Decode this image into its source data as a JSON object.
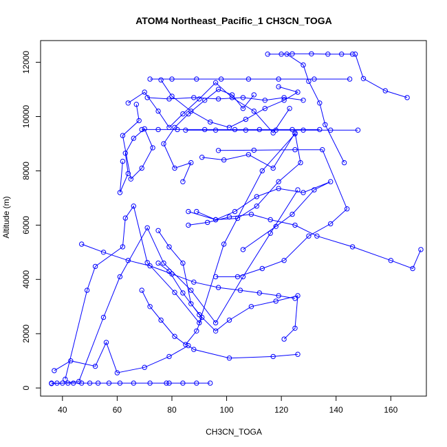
{
  "chart_data": {
    "type": "scatter",
    "title": "ATOM4 Northeast_Pacific_1 CH3CN_TOGA",
    "xlabel": "CH3CN_TOGA",
    "ylabel": "Altitude (m)",
    "xlim": [
      32,
      173
    ],
    "ylim": [
      -300,
      12800
    ],
    "x_ticks": [
      40,
      60,
      80,
      100,
      120,
      140,
      160
    ],
    "y_ticks": [
      0,
      2000,
      4000,
      6000,
      8000,
      10000,
      12000
    ],
    "grid": false,
    "legend": "none",
    "color": "#0000ff",
    "series": [
      {
        "x": [
          36,
          38,
          42,
          44,
          47,
          50,
          53,
          57,
          61,
          66,
          72,
          78,
          79,
          84,
          89,
          94
        ],
        "y": [
          180,
          180,
          180,
          180,
          180,
          180,
          180,
          180,
          180,
          180,
          180,
          180,
          180,
          180,
          180,
          180
        ]
      },
      {
        "x": [
          37,
          43,
          52,
          56,
          60,
          70,
          79,
          86,
          88,
          101,
          117,
          126
        ],
        "y": [
          640,
          1000,
          800,
          1680,
          560,
          760,
          1160,
          1560,
          1420,
          1100,
          1160,
          1240
        ]
      },
      {
        "x": [
          36,
          40,
          46,
          55,
          61,
          71,
          77,
          87,
          96,
          106,
          116,
          126
        ],
        "y": [
          160,
          180,
          240,
          2600,
          4100,
          5900,
          4600,
          3600,
          2400,
          4100,
          5700,
          7300
        ]
      },
      {
        "x": [
          41,
          49,
          52,
          62,
          63,
          66,
          71,
          81,
          90,
          99,
          113,
          125
        ],
        "y": [
          320,
          3600,
          4480,
          5200,
          6260,
          6700,
          4620,
          3520,
          2400,
          5300,
          8000,
          9360
        ]
      },
      {
        "x": [
          62,
          61,
          64,
          63,
          66,
          70,
          73,
          69,
          65,
          62,
          68,
          67
        ],
        "y": [
          8350,
          7200,
          7900,
          8650,
          9200,
          9550,
          8850,
          8100,
          7700,
          9300,
          9850,
          10450
        ]
      },
      {
        "x": [
          69,
          75,
          82,
          92,
          103,
          112,
          124,
          134
        ],
        "y": [
          9520,
          9520,
          9520,
          9520,
          9520,
          9520,
          9520,
          9520
        ]
      },
      {
        "x": [
          85,
          96,
          107,
          118,
          128,
          138,
          148
        ],
        "y": [
          9500,
          9500,
          9500,
          9500,
          9500,
          9500,
          9500
        ]
      },
      {
        "x": [
          71,
          79,
          88,
          97,
          106,
          114,
          121,
          128
        ],
        "y": [
          10700,
          10650,
          10700,
          10650,
          10700,
          10600,
          10700,
          10600
        ]
      },
      {
        "x": [
          72,
          80,
          89,
          98,
          108,
          119,
          132,
          145
        ],
        "y": [
          11380,
          11380,
          11380,
          11380,
          11380,
          11380,
          11380,
          11380
        ]
      },
      {
        "x": [
          115,
          120,
          124,
          131,
          137,
          142,
          146
        ],
        "y": [
          12300,
          12300,
          12310,
          12310,
          12300,
          12300,
          12300
        ]
      },
      {
        "x": [
          122,
          128,
          130,
          134,
          136,
          143
        ],
        "y": [
          12300,
          11900,
          11300,
          10500,
          9700,
          8300
        ]
      },
      {
        "x": [
          147,
          150,
          158,
          166
        ],
        "y": [
          12300,
          11400,
          10950,
          10700
        ]
      },
      {
        "x": [
          97,
          110,
          125,
          135,
          144,
          138,
          130,
          121,
          113,
          104,
          96
        ],
        "y": [
          8750,
          8760,
          8780,
          8780,
          6600,
          6050,
          5600,
          4700,
          4400,
          4100,
          4100
        ]
      },
      {
        "x": [
          106,
          118,
          124,
          132,
          138,
          128,
          119,
          111,
          103,
          96,
          89
        ],
        "y": [
          5100,
          5950,
          6400,
          7300,
          7600,
          7200,
          7350,
          7050,
          6500,
          6200,
          6500
        ]
      },
      {
        "x": [
          86,
          96,
          104,
          111,
          119,
          127,
          125,
          117,
          108,
          99,
          91
        ],
        "y": [
          6500,
          6200,
          6250,
          6700,
          7600,
          8300,
          9400,
          8100,
          8600,
          8400,
          8500
        ]
      },
      {
        "x": [
          171,
          168,
          160,
          146,
          133,
          125,
          116,
          109,
          101,
          93,
          86
        ],
        "y": [
          5100,
          4400,
          4700,
          5200,
          5600,
          6000,
          6200,
          6400,
          6300,
          6100,
          6000
        ]
      },
      {
        "x": [
          69,
          72,
          76,
          81,
          85,
          89,
          91,
          87,
          84,
          79,
          75
        ],
        "y": [
          3600,
          3000,
          2500,
          1900,
          1600,
          2100,
          2600,
          3100,
          4600,
          5200,
          5800
        ]
      },
      {
        "x": [
          75,
          79,
          84,
          90,
          96,
          101,
          109,
          118,
          126,
          125,
          121
        ],
        "y": [
          4600,
          4300,
          3500,
          2700,
          2100,
          2500,
          3000,
          3200,
          3400,
          2200,
          1800
        ]
      },
      {
        "x": [
          84,
          87,
          81,
          77,
          81,
          86,
          92,
          97,
          102,
          106,
          110
        ],
        "y": [
          7600,
          8300,
          8100,
          9000,
          9600,
          10100,
          10600,
          11000,
          10800,
          10300,
          10800
        ]
      },
      {
        "x": [
          76,
          80,
          87,
          94,
          101,
          107,
          114,
          121,
          126,
          119
        ],
        "y": [
          11350,
          10750,
          10200,
          9800,
          9600,
          9900,
          10300,
          10600,
          10900,
          11100
        ]
      },
      {
        "x": [
          64,
          70,
          75,
          79,
          84,
          90,
          96,
          102,
          110,
          117,
          123
        ],
        "y": [
          10500,
          10900,
          10200,
          9600,
          10100,
          10650,
          11250,
          10700,
          10200,
          9400,
          10300
        ]
      },
      {
        "x": [
          47,
          55,
          64,
          72,
          80,
          88,
          97,
          105,
          112,
          119,
          125
        ],
        "y": [
          5300,
          5000,
          4700,
          4500,
          4200,
          3900,
          3700,
          3600,
          3500,
          3400,
          3300
        ]
      }
    ]
  }
}
